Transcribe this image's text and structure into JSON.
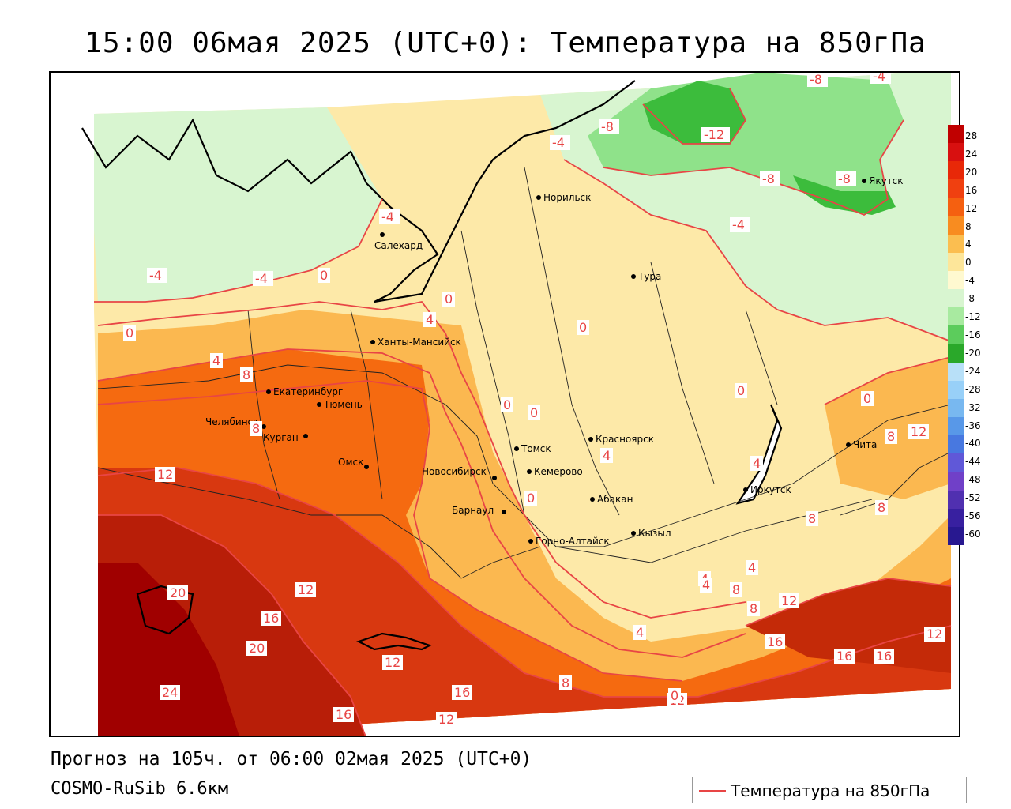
{
  "title": "15:00 06мая 2025 (UTC+0): Температура на 850гПа",
  "forecast_line": "Прогноз на 105ч. от 06:00 02мая 2025 (UTC+0)",
  "model_line": "COSMO-RuSib 6.6км",
  "legend_label": "Температура на 850гПа",
  "colors": {
    "contour": "#e84545",
    "t_24": "#a00000",
    "t_16": "#d83810",
    "t_8": "#f56a10",
    "t_4": "#fbb850",
    "t_0": "#fde9a8",
    "t_m4": "#d8f5d0",
    "t_m8": "#8fe28a",
    "t_m12": "#3cbc3c"
  },
  "colorbar": {
    "ticks": [
      "28",
      "24",
      "20",
      "16",
      "12",
      "8",
      "4",
      "0",
      "-4",
      "-8",
      "-12",
      "-16",
      "-20",
      "-24",
      "-28",
      "-32",
      "-36",
      "-40",
      "-44",
      "-48",
      "-52",
      "-56",
      "-60"
    ],
    "colors": [
      "#c00000",
      "#d81010",
      "#e82808",
      "#f04010",
      "#f56010",
      "#f88c20",
      "#fbbe50",
      "#fde69a",
      "#fff9d0",
      "#d8f5d0",
      "#a8eaa0",
      "#5ccc5c",
      "#2aa82a",
      "#b8e0f8",
      "#98d0f8",
      "#78b8f0",
      "#5898e8",
      "#4878e0",
      "#6058d8",
      "#7040c8",
      "#5030b0",
      "#3820a0",
      "#281890"
    ]
  },
  "cities": [
    {
      "name": "Норильск"
    },
    {
      "name": "Якутск"
    },
    {
      "name": "Салехард"
    },
    {
      "name": "Тура"
    },
    {
      "name": "Ханты-Мансийск"
    },
    {
      "name": "Екатеринбург"
    },
    {
      "name": "Тюмень"
    },
    {
      "name": "Челябинск"
    },
    {
      "name": "Курган"
    },
    {
      "name": "Омск"
    },
    {
      "name": "Новосибирск"
    },
    {
      "name": "Томск"
    },
    {
      "name": "Кемерово"
    },
    {
      "name": "Красноярск"
    },
    {
      "name": "Барнаул"
    },
    {
      "name": "Абакан"
    },
    {
      "name": "Горно-Алтайск"
    },
    {
      "name": "Кызыл"
    },
    {
      "name": "Иркутск"
    },
    {
      "name": "Чита"
    }
  ],
  "isotherm_labels": [
    "-8",
    "-4",
    "-8",
    "-12",
    "-8",
    "-8",
    "-4",
    "-4",
    "-4",
    "-4",
    "-4",
    "0",
    "0",
    "0",
    "4",
    "4",
    "8",
    "0",
    "0",
    "0",
    "0",
    "0",
    "4",
    "4",
    "8",
    "12",
    "8",
    "12",
    "16",
    "20",
    "20",
    "24",
    "12",
    "16",
    "12",
    "16",
    "12",
    "0",
    "4",
    "4",
    "8",
    "8",
    "12",
    "4",
    "16",
    "16",
    "16",
    "12",
    "8",
    "12",
    "8",
    "4",
    "8",
    "0"
  ]
}
